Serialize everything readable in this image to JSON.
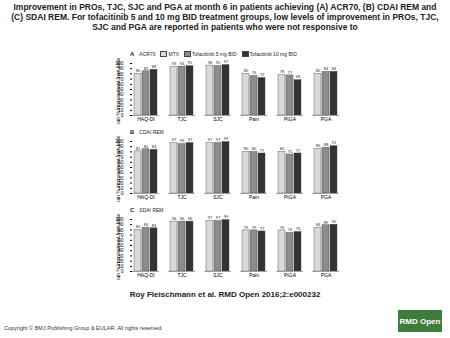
{
  "title": "Improvement in PROs, TJC, SJC and PGA at month 6 in patients achieving (A) ACR70, (B) CDAI REM and (C) SDAI REM. For tofacitinib 5 and 10 mg BID treatment groups, low levels of improvement in PROs, TJC, SJC and PGA are reported in patients who were not responsive to",
  "citation": "Roy Fleischmann et al. RMD Open 2016;2:e000232",
  "copyright": "Copyright © BMJ Publishing Group & EULAR. All rights reserved.",
  "logo": "RMD Open",
  "chart_data": [
    {
      "type": "bar",
      "title": "A",
      "subtitle": "ACR70",
      "y_label": "Mean % improvement from baseline",
      "categories": [
        "HAQ-DI",
        "TJC",
        "SJC",
        "Pain",
        "PtGA",
        "PGA"
      ],
      "series": [
        {
          "name": "MTX",
          "color": "#d9d9d9",
          "values": [
            80,
            93,
            96,
            80,
            78,
            80
          ]
        },
        {
          "name": "Tofacitinib 5 mg BID",
          "color": "#8c8c8c",
          "values": [
            85,
            94,
            95,
            76,
            77,
            84
          ]
        },
        {
          "name": "Tofacitinib 10 mg BID",
          "color": "#333333",
          "values": [
            88,
            95,
            97,
            72,
            68,
            84
          ]
        }
      ],
      "ylim": [
        0,
        100
      ],
      "yticks": [
        0,
        10,
        20,
        30,
        40,
        50,
        60,
        70,
        80,
        90,
        100
      ],
      "data_labels": true,
      "legend": "top"
    },
    {
      "type": "bar",
      "title": "B",
      "subtitle": "CDAI REM",
      "y_label": "Mean % improvement from baseline",
      "categories": [
        "HAQ-DI",
        "TJC",
        "SJC",
        "Pain",
        "PtGA",
        "PGA"
      ],
      "series": [
        {
          "name": "MTX",
          "color": "#d9d9d9",
          "values": [
            81,
            97,
            97,
            80,
            80,
            86
          ]
        },
        {
          "name": "Tofacitinib 5 mg BID",
          "color": "#8c8c8c",
          "values": [
            85,
            95,
            97,
            80,
            75,
            88
          ]
        },
        {
          "name": "Tofacitinib 10 mg BID",
          "color": "#333333",
          "values": [
            84,
            97,
            99,
            77,
            77,
            91
          ]
        }
      ],
      "ylim": [
        0,
        100
      ],
      "yticks": [
        0,
        10,
        20,
        30,
        40,
        50,
        60,
        70,
        80,
        90,
        100
      ],
      "data_labels": true
    },
    {
      "type": "bar",
      "title": "C",
      "subtitle": "SDAI REM",
      "y_label": "Mean % improvement from baseline",
      "categories": [
        "HAQ-DI",
        "TJC",
        "SJC",
        "Pain",
        "PtGA",
        "PGA"
      ],
      "series": [
        {
          "name": "MTX",
          "color": "#d9d9d9",
          "values": [
            80,
            96,
            97,
            79,
            79,
            84
          ]
        },
        {
          "name": "Tofacitinib 5 mg BID",
          "color": "#8c8c8c",
          "values": [
            84,
            96,
            97,
            79,
            74,
            89
          ]
        },
        {
          "name": "Tofacitinib 10 mg BID",
          "color": "#333333",
          "values": [
            83,
            96,
            99,
            77,
            76,
            90
          ]
        }
      ],
      "ylim": [
        0,
        100
      ],
      "yticks": [
        0,
        10,
        20,
        30,
        40,
        50,
        60,
        70,
        80,
        90,
        100
      ],
      "data_labels": true
    }
  ]
}
